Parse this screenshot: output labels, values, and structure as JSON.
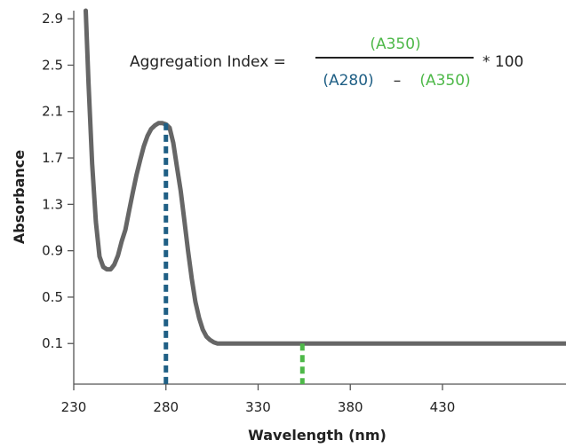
{
  "chart_data": {
    "type": "line",
    "xlabel": "Wavelength (nm)",
    "ylabel": "Absorbance",
    "xlim": [
      230,
      497
    ],
    "ylim": [
      -0.25,
      2.97
    ],
    "x_ticks": [
      "230",
      "280",
      "330",
      "380",
      "430"
    ],
    "y_ticks": [
      "2.9",
      "2.5",
      "2.1",
      "1.7",
      "1.3",
      "0.9",
      "0.5",
      "0.1"
    ],
    "grid": false,
    "annotation": {
      "lhs": "Aggregation Index =",
      "numerator": "(A350)",
      "denominator_a": "(A280)",
      "minus": "–",
      "denominator_b": "(A350)",
      "multiplier": "* 100"
    },
    "markers": [
      {
        "x": 280,
        "y": 2.0,
        "color": "#1f5f85"
      },
      {
        "x": 354,
        "y": 0.1,
        "color": "#4db848"
      }
    ],
    "series": [
      {
        "color": "#666666",
        "x": [
          236.5,
          238,
          240,
          242,
          244,
          246,
          248,
          250,
          252,
          254,
          256,
          258,
          260,
          262,
          264,
          266,
          268,
          270,
          272,
          274,
          276,
          278,
          280,
          282,
          284,
          286,
          288,
          290,
          292,
          294,
          296,
          298,
          300,
          302,
          304,
          306,
          308,
          310,
          312,
          316,
          320,
          330,
          350,
          380,
          420,
          460,
          497
        ],
        "y": [
          2.97,
          2.35,
          1.65,
          1.15,
          0.85,
          0.76,
          0.74,
          0.74,
          0.78,
          0.86,
          0.98,
          1.08,
          1.24,
          1.4,
          1.55,
          1.68,
          1.8,
          1.89,
          1.95,
          1.98,
          2.0,
          2.0,
          1.99,
          1.96,
          1.83,
          1.62,
          1.42,
          1.16,
          0.9,
          0.66,
          0.46,
          0.32,
          0.22,
          0.16,
          0.13,
          0.11,
          0.1,
          0.1,
          0.1,
          0.1,
          0.1,
          0.1,
          0.1,
          0.1,
          0.1,
          0.1,
          0.1
        ]
      }
    ]
  }
}
